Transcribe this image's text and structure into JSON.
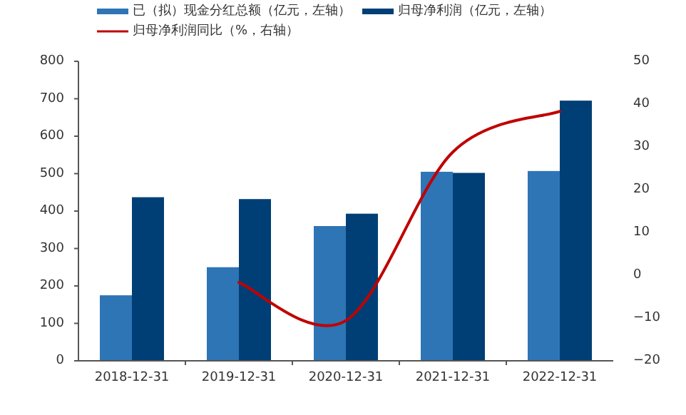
{
  "chart_data": {
    "type": "bar",
    "categories": [
      "2018-12-31",
      "2019-12-31",
      "2020-12-31",
      "2021-12-31",
      "2022-12-31"
    ],
    "series": [
      {
        "name": "已（拟）现金分红总额（亿元，左轴）",
        "color": "#2e75b6",
        "values": [
          175,
          250,
          360,
          505,
          507
        ]
      },
      {
        "name": "归母净利润（亿元，左轴）",
        "color": "#003f75",
        "values": [
          437,
          432,
          393,
          502,
          695
        ]
      },
      {
        "name": "归母净利润同比（%，右轴）",
        "type": "line",
        "axis": "y2",
        "color": "#c00000",
        "values": [
          null,
          -1.7,
          -10.6,
          28.8,
          38.3
        ]
      }
    ],
    "ylim": [
      0,
      800
    ],
    "yticks": [
      0,
      100,
      200,
      300,
      400,
      500,
      600,
      700,
      800
    ],
    "y2lim": [
      -20,
      50
    ],
    "y2ticks": [
      -20,
      -10,
      0,
      10,
      20,
      30,
      40,
      50
    ],
    "legend": "top",
    "grid": false
  }
}
